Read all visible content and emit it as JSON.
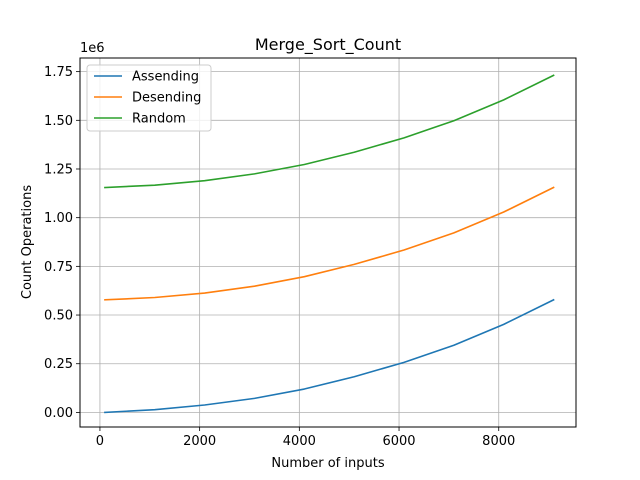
{
  "chart_data": {
    "type": "line",
    "title": "Merge_Sort_Count",
    "xlabel": "Number of inputs",
    "ylabel": "Count Operations",
    "y_offset_label": "1e6",
    "xlim": [
      -400,
      9550
    ],
    "ylim": [
      -75000,
      1820000
    ],
    "x_ticks": [
      0,
      2000,
      4000,
      6000,
      8000
    ],
    "x_tick_labels": [
      "0",
      "2000",
      "4000",
      "6000",
      "8000"
    ],
    "y_ticks": [
      0,
      250000,
      500000,
      750000,
      1000000,
      1250000,
      1500000,
      1750000
    ],
    "y_tick_labels": [
      "0.00",
      "0.25",
      "0.50",
      "0.75",
      "1.00",
      "1.25",
      "1.50",
      "1.75"
    ],
    "grid": true,
    "legend_position": "top-left",
    "x": [
      100,
      1100,
      2100,
      3100,
      4100,
      5100,
      6100,
      7100,
      8100,
      9100
    ],
    "series": [
      {
        "name": "Assending",
        "color": "#1f77b4",
        "values": [
          0,
          14000,
          38000,
          72000,
          120000,
          183000,
          257000,
          345000,
          452000,
          578000
        ]
      },
      {
        "name": "Desending",
        "color": "#ff7f0e",
        "values": [
          578000,
          590000,
          613000,
          648000,
          697000,
          760000,
          834000,
          922000,
          1029000,
          1155000
        ]
      },
      {
        "name": "Random",
        "color": "#2ca02c",
        "values": [
          1155000,
          1167000,
          1190000,
          1225000,
          1273000,
          1336000,
          1410000,
          1498000,
          1605000,
          1731000
        ]
      }
    ]
  }
}
